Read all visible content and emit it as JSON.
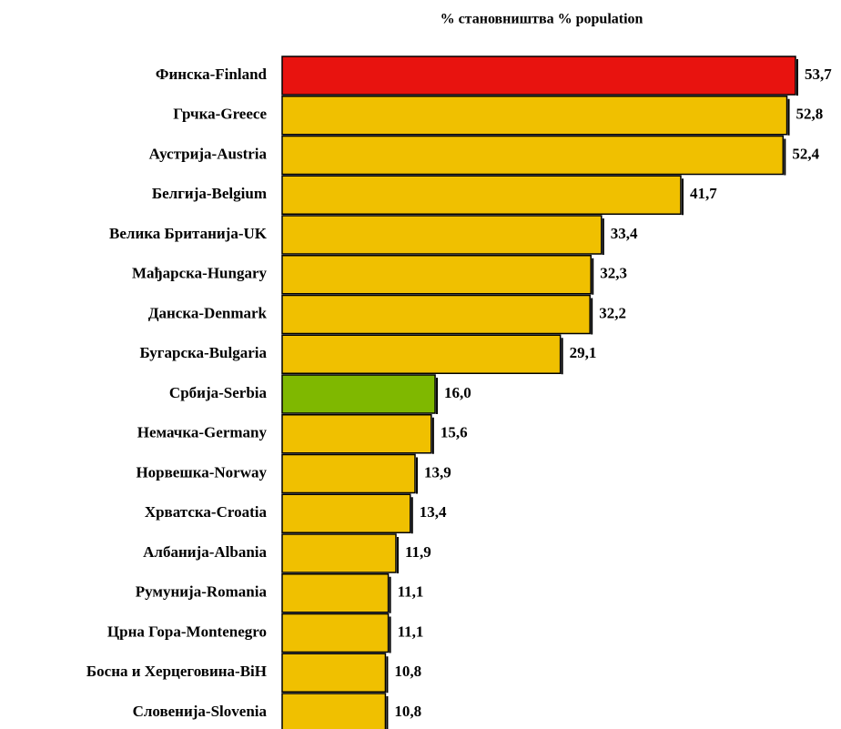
{
  "chart_data": {
    "type": "bar",
    "orientation": "horizontal",
    "title": "% становништва % population",
    "categories": [
      "Финска-Finland",
      "Грчка-Greece",
      "Аустрија-Austria",
      "Белгија-Belgium",
      "Велика Британија-UK",
      "Мађарска-Hungary",
      "Данска-Denmark",
      "Бугарска-Bulgaria",
      "Србија-Serbia",
      "Немачка-Germany",
      "Норвешка-Norway",
      "Хрватска-Croatia",
      "Албанија-Albania",
      "Румунија-Romania",
      "Црна Гора-Montenegro",
      "Босна и Херцеговина-BiH",
      "Словенија-Slovenia"
    ],
    "values": [
      53.7,
      52.8,
      52.4,
      41.7,
      33.4,
      32.3,
      32.2,
      29.1,
      16.0,
      15.6,
      13.9,
      13.4,
      11.9,
      11.1,
      11.1,
      10.8,
      10.8
    ],
    "value_labels": [
      "53,7",
      "52,8",
      "52,4",
      "41,7",
      "33,4",
      "32,3",
      "32,2",
      "29,1",
      "16,0",
      "15,6",
      "13,9",
      "13,4",
      "11,9",
      "11,1",
      "11,1",
      "10,8",
      "10,8"
    ],
    "colors": [
      "#e8130f",
      "#f0c000",
      "#f0c000",
      "#f0c000",
      "#f0c000",
      "#f0c000",
      "#f0c000",
      "#f0c000",
      "#7fb800",
      "#f0c000",
      "#f0c000",
      "#f0c000",
      "#f0c000",
      "#f0c000",
      "#f0c000",
      "#f0c000",
      "#f0c000"
    ]
  }
}
